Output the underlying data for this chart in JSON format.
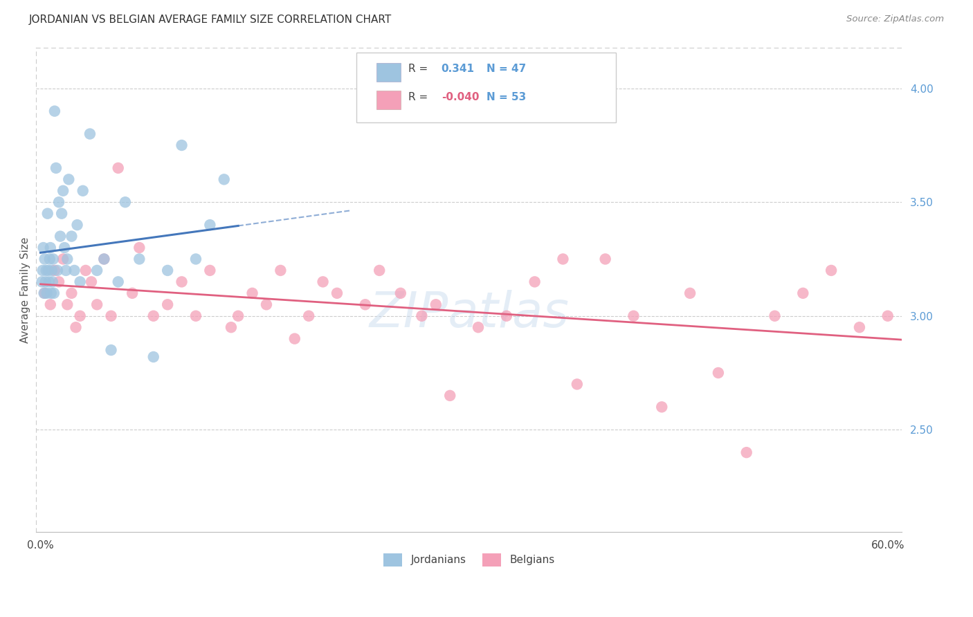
{
  "title": "JORDANIAN VS BELGIAN AVERAGE FAMILY SIZE CORRELATION CHART",
  "source": "Source: ZipAtlas.com",
  "ylabel": "Average Family Size",
  "right_yticks": [
    2.5,
    3.0,
    3.5,
    4.0
  ],
  "blue_color": "#9ec4e0",
  "pink_color": "#f4a0b8",
  "blue_line_color": "#4477bb",
  "pink_line_color": "#e06080",
  "watermark": "ZIPatlas",
  "background_color": "#ffffff",
  "jordanians_x": [
    0.1,
    0.15,
    0.2,
    0.25,
    0.3,
    0.35,
    0.4,
    0.45,
    0.5,
    0.55,
    0.6,
    0.65,
    0.7,
    0.75,
    0.8,
    0.85,
    0.9,
    0.95,
    1.0,
    1.1,
    1.2,
    1.3,
    1.4,
    1.5,
    1.6,
    1.7,
    1.8,
    1.9,
    2.0,
    2.2,
    2.4,
    2.6,
    2.8,
    3.0,
    3.5,
    4.0,
    4.5,
    5.0,
    5.5,
    6.0,
    7.0,
    8.0,
    9.0,
    10.0,
    11.0,
    12.0,
    13.0
  ],
  "jordanians_y": [
    3.15,
    3.2,
    3.3,
    3.1,
    3.25,
    3.15,
    3.2,
    3.1,
    3.45,
    3.2,
    3.15,
    3.25,
    3.3,
    3.1,
    3.2,
    3.15,
    3.25,
    3.1,
    3.9,
    3.65,
    3.2,
    3.5,
    3.35,
    3.45,
    3.55,
    3.3,
    3.2,
    3.25,
    3.6,
    3.35,
    3.2,
    3.4,
    3.15,
    3.55,
    3.8,
    3.2,
    3.25,
    2.85,
    3.15,
    3.5,
    3.25,
    2.82,
    3.2,
    3.75,
    3.25,
    3.4,
    3.6
  ],
  "belgians_x": [
    0.3,
    0.7,
    1.0,
    1.3,
    1.6,
    1.9,
    2.2,
    2.5,
    2.8,
    3.2,
    3.6,
    4.0,
    4.5,
    5.0,
    5.5,
    6.5,
    7.0,
    8.0,
    9.0,
    10.0,
    11.0,
    12.0,
    13.5,
    14.0,
    15.0,
    16.0,
    17.0,
    18.0,
    19.0,
    20.0,
    21.0,
    23.0,
    24.0,
    25.5,
    27.0,
    28.0,
    29.0,
    31.0,
    33.0,
    35.0,
    37.0,
    38.0,
    40.0,
    42.0,
    44.0,
    46.0,
    48.0,
    50.0,
    52.0,
    54.0,
    56.0,
    58.0,
    60.0
  ],
  "belgians_y": [
    3.1,
    3.05,
    3.2,
    3.15,
    3.25,
    3.05,
    3.1,
    2.95,
    3.0,
    3.2,
    3.15,
    3.05,
    3.25,
    3.0,
    3.65,
    3.1,
    3.3,
    3.0,
    3.05,
    3.15,
    3.0,
    3.2,
    2.95,
    3.0,
    3.1,
    3.05,
    3.2,
    2.9,
    3.0,
    3.15,
    3.1,
    3.05,
    3.2,
    3.1,
    3.0,
    3.05,
    2.65,
    2.95,
    3.0,
    3.15,
    3.25,
    2.7,
    3.25,
    3.0,
    2.6,
    3.1,
    2.75,
    2.4,
    3.0,
    3.1,
    3.2,
    2.95,
    3.0
  ]
}
